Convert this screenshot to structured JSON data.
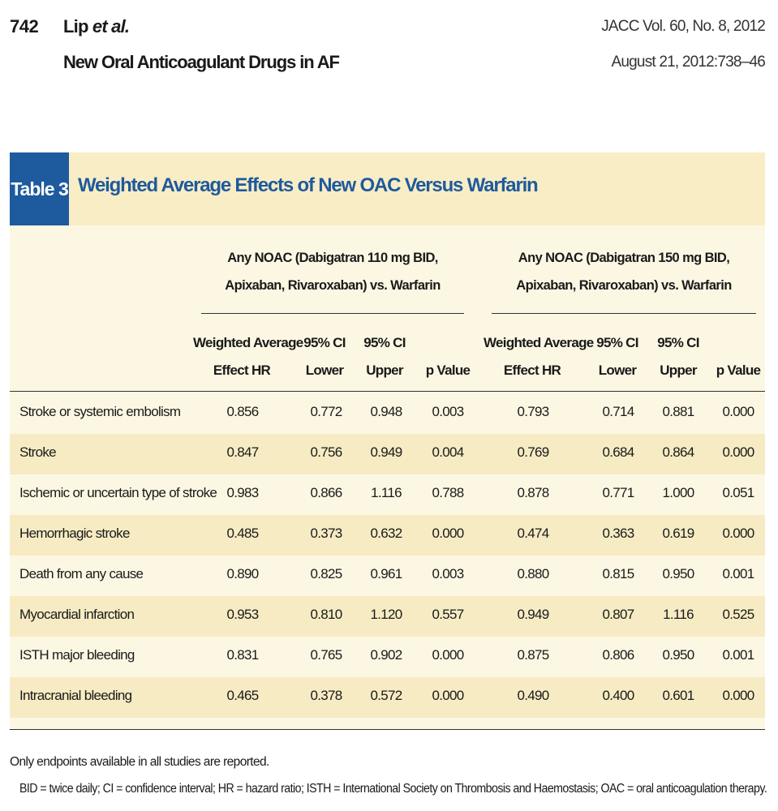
{
  "header": {
    "page_number": "742",
    "authors_main": "Lip ",
    "authors_etal": "et al.",
    "running_title": "New Oral Anticoagulant Drugs in AF",
    "journal_line1": "JACC Vol. 60, No. 8, 2012",
    "journal_line2": "August 21, 2012:738–46"
  },
  "table": {
    "tag": "Table 3",
    "title": "Weighted Average Effects of New OAC Versus Warfarin",
    "group1_line1": "Any NOAC (Dabigatran 110 mg BID,",
    "group1_line2": "Apixaban, Rivaroxaban) vs. Warfarin",
    "group2_line1": "Any NOAC (Dabigatran 150 mg BID,",
    "group2_line2": "Apixaban, Rivaroxaban) vs. Warfarin",
    "columns": [
      [
        "Weighted Average",
        "Effect HR"
      ],
      [
        "95% CI",
        "Lower"
      ],
      [
        "95% CI",
        "Upper"
      ],
      [
        "",
        "p Value"
      ],
      [
        "Weighted Average",
        "Effect HR"
      ],
      [
        "95% CI",
        "Lower"
      ],
      [
        "95% CI",
        "Upper"
      ],
      [
        "",
        "p Value"
      ]
    ],
    "rows": [
      {
        "label": "Stroke or systemic embolism",
        "values": [
          "0.856",
          "0.772",
          "0.948",
          "0.003",
          "0.793",
          "0.714",
          "0.881",
          "0.000"
        ]
      },
      {
        "label": "Stroke",
        "values": [
          "0.847",
          "0.756",
          "0.949",
          "0.004",
          "0.769",
          "0.684",
          "0.864",
          "0.000"
        ]
      },
      {
        "label": "Ischemic or uncertain type of stroke",
        "values": [
          "0.983",
          "0.866",
          "1.116",
          "0.788",
          "0.878",
          "0.771",
          "1.000",
          "0.051"
        ]
      },
      {
        "label": "Hemorrhagic stroke",
        "values": [
          "0.485",
          "0.373",
          "0.632",
          "0.000",
          "0.474",
          "0.363",
          "0.619",
          "0.000"
        ]
      },
      {
        "label": "Death from any cause",
        "values": [
          "0.890",
          "0.825",
          "0.961",
          "0.003",
          "0.880",
          "0.815",
          "0.950",
          "0.001"
        ]
      },
      {
        "label": "Myocardial infarction",
        "values": [
          "0.953",
          "0.810",
          "1.120",
          "0.557",
          "0.949",
          "0.807",
          "1.116",
          "0.525"
        ]
      },
      {
        "label": "ISTH major bleeding",
        "values": [
          "0.831",
          "0.765",
          "0.902",
          "0.000",
          "0.875",
          "0.806",
          "0.950",
          "0.001"
        ]
      },
      {
        "label": "Intracranial bleeding",
        "values": [
          "0.465",
          "0.378",
          "0.572",
          "0.000",
          "0.490",
          "0.400",
          "0.601",
          "0.000"
        ]
      }
    ]
  },
  "footnotes": {
    "line1": "Only endpoints available in all studies are reported.",
    "line2": "BID = twice daily; CI = confidence interval; HR = hazard ratio; ISTH = International Society on Thrombosis and Haemostasis; OAC = oral anticoagulation therapy."
  },
  "colors": {
    "accent_blue": "#1e5a9e",
    "title_bar_bg": "#f9edc5",
    "table_bg": "#fcf7e3",
    "row_alt_bg": "#f6ebc3"
  }
}
